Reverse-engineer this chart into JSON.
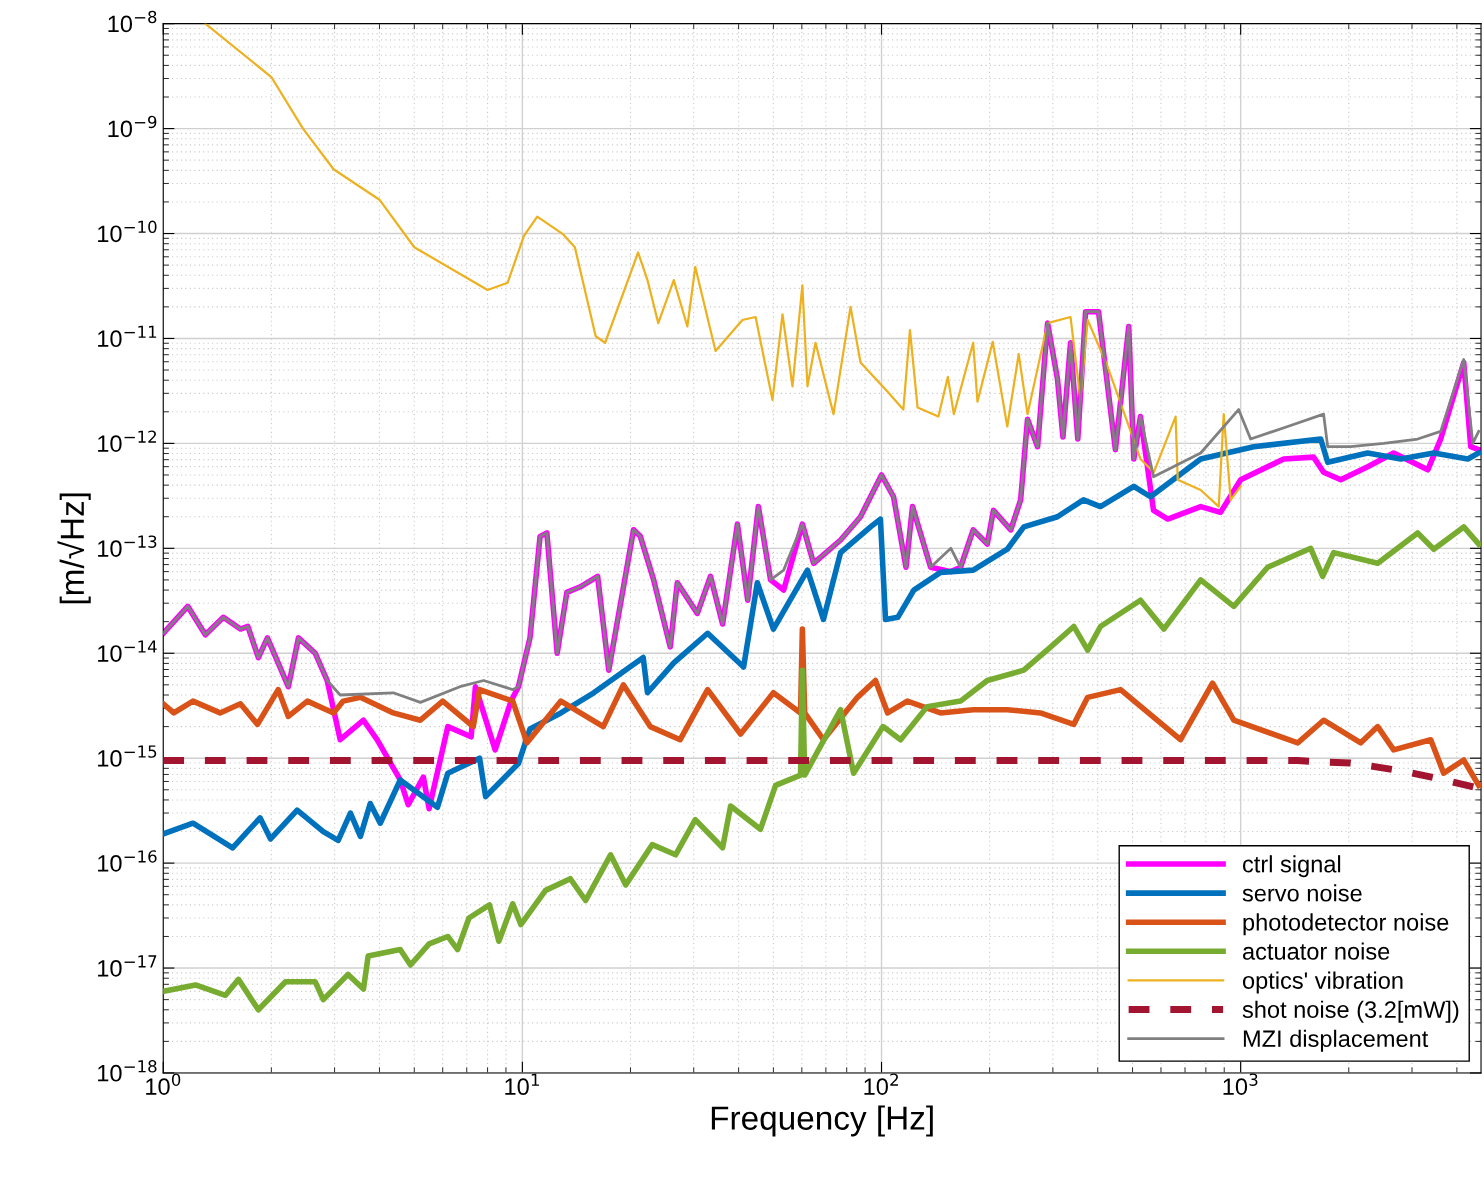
{
  "chart_data": {
    "type": "line",
    "xlabel": "Frequency [Hz]",
    "ylabel": "[m/√Hz]",
    "log": "xy",
    "grid": true,
    "legend": "bottom right",
    "xlim": [
      1,
      4670
    ],
    "ylim": [
      1e-18,
      1e-08
    ],
    "xticks": [
      {
        "value": 1,
        "label": "10$^{0}$"
      },
      {
        "value": 10,
        "label": "10$^{1}$"
      },
      {
        "value": 100,
        "label": "10$^{2}$"
      },
      {
        "value": 1000,
        "label": "10$^{3}$"
      }
    ],
    "yticks": [
      {
        "value": 1e-18,
        "label": "10$^{−18}$"
      },
      {
        "value": 1e-17,
        "label": "10$^{−17}$"
      },
      {
        "value": 1e-16,
        "label": "10$^{−16}$"
      },
      {
        "value": 1e-15,
        "label": "10$^{−15}$"
      },
      {
        "value": 1e-14,
        "label": "10$^{−14}$"
      },
      {
        "value": 1e-13,
        "label": "10$^{−13}$"
      },
      {
        "value": 1e-12,
        "label": "10$^{−12}$"
      },
      {
        "value": 1e-11,
        "label": "10$^{−11}$"
      },
      {
        "value": 1e-10,
        "label": "10$^{−10}$"
      },
      {
        "value": 1e-09,
        "label": "10$^{−9}$"
      },
      {
        "value": 1e-08,
        "label": "10$^{−8}$"
      }
    ],
    "series": [
      {
        "name": "ctrl signal",
        "color": "#ff00ff",
        "line_style": "solid",
        "x": [
          1.0,
          1.17,
          1.31,
          1.47,
          1.64,
          1.72,
          1.84,
          1.95,
          2.23,
          2.38,
          2.65,
          2.86,
          3.11,
          3.61,
          3.94,
          4.57,
          4.81,
          5.3,
          5.5,
          6.2,
          7.2,
          7.4,
          8.4,
          9.3,
          9.75,
          10.5,
          11.2,
          11.7,
          12.5,
          13.3,
          14.5,
          16.2,
          17.4,
          20.4,
          21.3,
          23.2,
          25.8,
          27.0,
          30.7,
          33.4,
          36.1,
          39.7,
          42.4,
          45.4,
          49.1,
          53.4,
          60.2,
          64.7,
          76.9,
          87.4,
          100,
          108,
          117,
          122,
          137,
          156,
          166,
          180,
          197,
          205,
          229,
          244,
          255,
          272,
          290,
          309,
          320,
          336,
          352,
          370,
          402,
          448,
          488,
          504,
          526,
          572,
          627,
          774,
          879,
          1000,
          1318,
          1596,
          1702,
          1900,
          2258,
          2667,
          3319,
          3606,
          4180,
          4373,
          4600
        ],
        "values": [
          1.55e-14,
          2.8e-14,
          1.5e-14,
          2.2e-14,
          1.7e-14,
          1.8e-14,
          9.1e-15,
          1.4e-14,
          4.8e-15,
          1.4e-14,
          1e-14,
          5.5e-15,
          1.5e-15,
          2.3e-15,
          1.5e-15,
          6.2e-16,
          3.6e-16,
          6.6e-16,
          3.3e-16,
          2e-15,
          1.6e-15,
          4.8e-15,
          1.2e-15,
          3.5e-15,
          4.8e-15,
          1.4e-14,
          1.3e-13,
          1.4e-13,
          1e-14,
          3.8e-14,
          4.3e-14,
          5.4e-14,
          6.9e-15,
          1.5e-13,
          1.3e-13,
          5e-14,
          1.15e-14,
          4.7e-14,
          2.4e-14,
          5.4e-14,
          1.9e-14,
          1.7e-13,
          3.2e-14,
          2.5e-13,
          5e-14,
          4e-14,
          1.7e-13,
          7.2e-14,
          1.2e-13,
          2e-13,
          5e-13,
          3.1e-13,
          6.6e-14,
          2.5e-13,
          6.6e-14,
          6e-14,
          6.6e-14,
          1.5e-13,
          1.1e-13,
          2.3e-13,
          1.5e-13,
          2.9e-13,
          1.7e-12,
          9.3e-13,
          1.4e-11,
          4.1e-12,
          1.15e-12,
          9.1e-12,
          1.1e-12,
          1.8e-11,
          1.8e-11,
          8.7e-13,
          1.3e-11,
          7.1e-13,
          1.8e-12,
          2.3e-13,
          1.9e-13,
          2.5e-13,
          2.2e-13,
          4.5e-13,
          7.1e-13,
          7.4e-13,
          5.3e-13,
          4.5e-13,
          6e-13,
          8.1e-13,
          5.6e-13,
          1.1e-12,
          5.9e-12,
          9.3e-13,
          8.7e-13
        ]
      },
      {
        "name": "servo noise",
        "color": "#0072bd",
        "line_style": "solid",
        "x": [
          1.0,
          1.21,
          1.56,
          1.86,
          1.99,
          2.36,
          2.79,
          3.07,
          3.32,
          3.54,
          3.77,
          4.02,
          4.57,
          5.8,
          6.2,
          7.6,
          7.9,
          9.75,
          10.5,
          12.8,
          15.8,
          21.7,
          22.3,
          26.4,
          32.8,
          41.3,
          45.1,
          50.0,
          62.2,
          68.9,
          76.9,
          93.2,
          99.3,
          102.6,
          111,
          123,
          146,
          180,
          224,
          249,
          309,
          365,
          407,
          504,
          561,
          774,
          1087,
          1671,
          1747,
          2258,
          2790,
          3450,
          4290,
          4600
        ],
        "values": [
          1.9e-16,
          2.4e-16,
          1.4e-16,
          2.7e-16,
          1.7e-16,
          3.2e-16,
          2e-16,
          1.65e-16,
          3e-16,
          1.8e-16,
          3.7e-16,
          2.4e-16,
          6.2e-16,
          3.4e-16,
          7.2e-16,
          1e-15,
          4.3e-16,
          8.9e-16,
          1.9e-15,
          2.7e-15,
          4.2e-15,
          9.1e-15,
          4.2e-15,
          8.1e-15,
          1.55e-14,
          7.4e-15,
          4.7e-14,
          1.7e-14,
          6.2e-14,
          2.1e-14,
          9.1e-14,
          1.6e-13,
          1.9e-13,
          2.1e-14,
          2.2e-14,
          4e-14,
          5.9e-14,
          6.2e-14,
          9.8e-14,
          1.6e-13,
          2e-13,
          2.9e-13,
          2.5e-13,
          3.9e-13,
          3.1e-13,
          7.1e-13,
          9.3e-13,
          1.1e-12,
          6.6e-13,
          8.1e-13,
          7.1e-13,
          8.1e-13,
          7.1e-13,
          8.1e-13
        ]
      },
      {
        "name": "photodetector noise",
        "color": "#d95319",
        "line_style": "solid",
        "x": [
          1.0,
          1.07,
          1.21,
          1.44,
          1.64,
          1.83,
          2.09,
          2.23,
          2.52,
          2.98,
          3.17,
          3.54,
          4.37,
          5.2,
          6.0,
          7.3,
          7.6,
          9.4,
          10.3,
          12.8,
          16.8,
          19.1,
          22.7,
          27.5,
          32.8,
          40.5,
          50.0,
          59.5,
          60.2,
          61.1,
          68.9,
          85.7,
          96.2,
          104,
          118,
          146,
          180,
          224,
          277,
          343,
          375,
          463,
          680,
          835,
          957,
          1442,
          1702,
          2160,
          2408,
          2667,
          3383,
          3675,
          4180,
          4600
        ],
        "values": [
          3.3e-15,
          2.7e-15,
          3.5e-15,
          2.7e-15,
          3.3e-15,
          2.1e-15,
          4.5e-15,
          2.5e-15,
          3.5e-15,
          2.7e-15,
          3.5e-15,
          3.8e-15,
          2.7e-15,
          2.3e-15,
          3.5e-15,
          2e-15,
          4.5e-15,
          3.5e-15,
          1.4e-15,
          3.5e-15,
          2e-15,
          5e-15,
          2e-15,
          1.5e-15,
          4.5e-15,
          1.7e-15,
          4.2e-15,
          2.7e-15,
          1.7e-14,
          2.7e-15,
          1.5e-15,
          3.8e-15,
          5.5e-15,
          2.7e-15,
          3.5e-15,
          2.7e-15,
          2.9e-15,
          2.9e-15,
          2.7e-15,
          2.1e-15,
          3.8e-15,
          4.5e-15,
          1.5e-15,
          5.2e-15,
          2.3e-15,
          1.4e-15,
          2.3e-15,
          1.4e-15,
          2e-15,
          1.2e-15,
          1.5e-15,
          7.2e-16,
          9.6e-16,
          5.5e-16
        ]
      },
      {
        "name": "actuator noise",
        "color": "#77ac30",
        "line_style": "solid",
        "x": [
          1.0,
          1.23,
          1.49,
          1.62,
          1.84,
          2.19,
          2.65,
          2.79,
          3.27,
          3.61,
          3.72,
          4.57,
          4.88,
          5.5,
          6.2,
          6.6,
          7.1,
          8.1,
          8.6,
          9.4,
          9.9,
          11.6,
          13.6,
          15.0,
          17.6,
          19.4,
          23.0,
          26.7,
          30.3,
          36.1,
          38.0,
          46.0,
          50.7,
          59.5,
          60.2,
          61.1,
          76.9,
          83.6,
          101,
          113,
          134,
          166,
          197,
          249,
          296,
          343,
          375,
          407,
          526,
          611,
          774,
          957,
          1189,
          1567,
          1692,
          1815,
          2408,
          3111,
          3450,
          4180,
          4600
        ],
        "values": [
          6e-18,
          6.9e-18,
          5.5e-18,
          7.8e-18,
          4e-18,
          7.4e-18,
          7.4e-18,
          5e-18,
          8.7e-18,
          6.3e-18,
          1.3e-17,
          1.5e-17,
          1.07e-17,
          1.7e-17,
          2e-17,
          1.5e-17,
          3e-17,
          4e-17,
          1.8e-17,
          4.1e-17,
          2.6e-17,
          5.5e-17,
          7.1e-17,
          4.4e-17,
          1.2e-16,
          6.2e-17,
          1.5e-16,
          1.2e-16,
          2.6e-16,
          1.4e-16,
          3.5e-16,
          2.1e-16,
          5.5e-16,
          6.9e-16,
          6.9e-15,
          6.9e-16,
          2.9e-15,
          7.2e-16,
          2e-15,
          1.5e-15,
          3.1e-15,
          3.5e-15,
          5.5e-15,
          6.9e-15,
          1.15e-14,
          1.8e-14,
          1.07e-14,
          1.8e-14,
          3.2e-14,
          1.7e-14,
          5e-14,
          2.8e-14,
          6.6e-14,
          1e-13,
          5.4e-14,
          9.1e-14,
          7.2e-14,
          1.4e-13,
          9.8e-14,
          1.6e-13,
          1.1e-13
        ]
      },
      {
        "name": "optics' vibration",
        "color": "#edb120",
        "line_style": "solid",
        "x": [
          1.31,
          2.0,
          2.45,
          2.98,
          4.0,
          5.0,
          8.0,
          9.1,
          10.1,
          11.0,
          13.0,
          14.0,
          16.0,
          17.0,
          21.0,
          22.3,
          23.9,
          26.4,
          28.8,
          30.3,
          34.5,
          41.0,
          44.6,
          49.7,
          53.0,
          56.5,
          60.2,
          62.2,
          65.5,
          73.5,
          82.0,
          87.4,
          104,
          115,
          120,
          126,
          144,
          153,
          159,
          180,
          185,
          204,
          224,
          241,
          255,
          290,
          336,
          358,
          375,
          426,
          526,
          573,
          659,
          668,
          774,
          869,
          897,
          938,
          1000
        ],
        "values": [
          1e-08,
          3.1e-09,
          1e-09,
          4.1e-10,
          2.1e-10,
          7.4e-11,
          2.9e-11,
          3.4e-11,
          9.5e-11,
          1.45e-10,
          9.8e-11,
          7.4e-11,
          1.05e-11,
          9.1e-12,
          6.6e-11,
          3.6e-11,
          1.4e-11,
          3.6e-11,
          1.3e-11,
          4.8e-11,
          7.6e-12,
          1.5e-11,
          1.6e-11,
          2.6e-12,
          1.7e-11,
          3.5e-12,
          3.2e-11,
          3.5e-12,
          9.1e-12,
          1.9e-12,
          2e-11,
          5.9e-12,
          3.1e-12,
          2.1e-12,
          1.2e-11,
          2.2e-12,
          1.8e-12,
          4.3e-12,
          1.9e-12,
          9.1e-12,
          2.5e-12,
          9.3e-12,
          1.45e-12,
          7.1e-12,
          1.9e-12,
          1.4e-11,
          1.6e-11,
          2.6e-12,
          1.5e-11,
          5.4e-12,
          7.1e-13,
          5.3e-13,
          1.8e-12,
          4.5e-13,
          3.6e-13,
          2.5e-13,
          1.9e-12,
          2.9e-13,
          3.9e-13
        ]
      },
      {
        "name": "shot noise (3.2[mW])",
        "color": "#a2142f",
        "line_style": "dashed",
        "x": [
          1,
          1442,
          1700,
          2024,
          2790,
          3700,
          4670
        ],
        "values": [
          9.5e-16,
          9.5e-16,
          9.2e-16,
          9e-16,
          7.6e-16,
          6.2e-16,
          5.1e-16
        ]
      },
      {
        "name": "MZI displacement",
        "color": "#808080",
        "line_style": "solid",
        "x": [
          1.0,
          1.17,
          1.31,
          1.47,
          1.64,
          1.72,
          1.84,
          1.95,
          2.23,
          2.38,
          2.65,
          2.86,
          3.11,
          4.37,
          5.2,
          6.7,
          7.8,
          9.4,
          9.75,
          10.5,
          11.2,
          11.7,
          12.5,
          13.3,
          14.5,
          16.2,
          17.4,
          20.4,
          21.3,
          23.2,
          25.8,
          27.0,
          30.7,
          33.4,
          36.1,
          39.7,
          42.4,
          45.4,
          49.1,
          53.4,
          60.2,
          64.7,
          76.9,
          87.4,
          100,
          108,
          117,
          122,
          137,
          156,
          166,
          180,
          197,
          205,
          229,
          244,
          255,
          272,
          290,
          309,
          320,
          336,
          352,
          370,
          402,
          448,
          488,
          504,
          526,
          572,
          774,
          987,
          1066,
          1352,
          1702,
          1747,
          2024,
          2503,
          3111,
          3606,
          4180,
          4430,
          4600
        ],
        "values": [
          1.55e-14,
          2.8e-14,
          1.5e-14,
          2.2e-14,
          1.7e-14,
          1.8e-14,
          9.1e-15,
          1.4e-14,
          4.8e-15,
          1.4e-14,
          1e-14,
          5.5e-15,
          4e-15,
          4.2e-15,
          3.4e-15,
          4.8e-15,
          5.5e-15,
          4.5e-15,
          4.8e-15,
          1.4e-14,
          1.3e-13,
          1.4e-13,
          1e-14,
          3.8e-14,
          4.3e-14,
          5.4e-14,
          6.9e-15,
          1.5e-13,
          1.3e-13,
          5e-14,
          1.15e-14,
          4.7e-14,
          2.4e-14,
          5.4e-14,
          1.9e-14,
          1.7e-13,
          3.2e-14,
          2.5e-13,
          5e-14,
          6.2e-14,
          1.7e-13,
          7.2e-14,
          1.2e-13,
          2e-13,
          5e-13,
          3.1e-13,
          6.6e-14,
          2.5e-13,
          6.6e-14,
          1e-13,
          6.6e-14,
          1.5e-13,
          1.1e-13,
          2.3e-13,
          1.5e-13,
          2.9e-13,
          1.7e-12,
          9.3e-13,
          1.4e-11,
          4.1e-12,
          1.15e-12,
          9.1e-12,
          1.1e-12,
          1.8e-11,
          1.8e-11,
          8.7e-13,
          1.3e-11,
          7.1e-13,
          1.8e-12,
          4.8e-13,
          8.1e-13,
          2.1e-12,
          1.1e-12,
          1.45e-12,
          1.9e-12,
          9.3e-13,
          9.3e-13,
          1e-12,
          1.1e-12,
          1.3e-12,
          6.3e-12,
          1e-12,
          1.3e-12
        ]
      }
    ]
  }
}
